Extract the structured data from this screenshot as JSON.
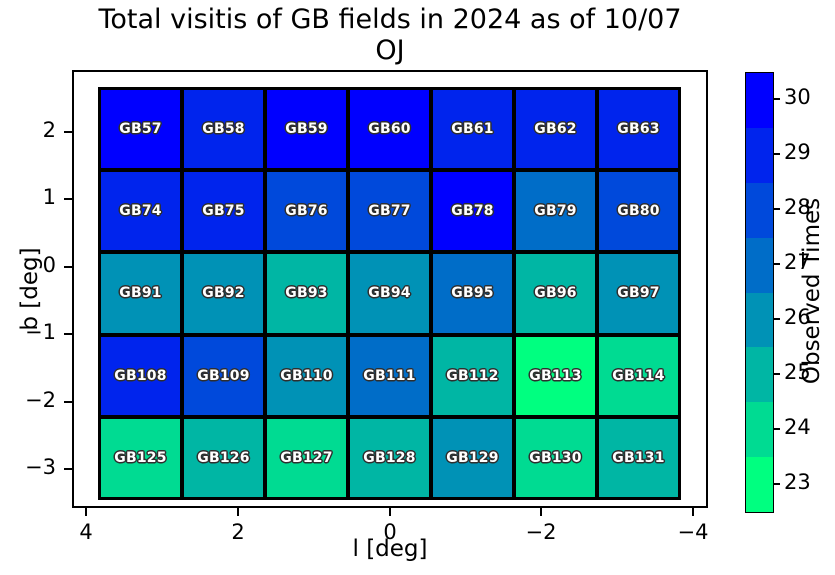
{
  "title": {
    "line1": "Total visitis of GB fields in 2024 as of 10/07",
    "line2": "OJ"
  },
  "axes": {
    "xlabel": "l [deg]",
    "ylabel": "b [deg]",
    "xtick_labels": [
      "4",
      "2",
      "0",
      "−2",
      "−4"
    ],
    "ytick_labels": [
      "2",
      "1",
      "0",
      "−1",
      "−2",
      "−3"
    ]
  },
  "colorbar": {
    "label": "Observed Times",
    "tick_labels": [
      "30",
      "29",
      "28",
      "27",
      "26",
      "25",
      "24",
      "23"
    ]
  },
  "chart_data": {
    "type": "heatmap",
    "title": "Total visitis of GB fields in 2024 as of 10/07 OJ",
    "xlabel": "l [deg]",
    "ylabel": "b [deg]",
    "colorbar_label": "Observed Times",
    "x_ticks": [
      4,
      2,
      0,
      -2,
      -4
    ],
    "y_ticks": [
      2,
      1,
      0,
      -1,
      -2,
      -3
    ],
    "x_axis_inverted": true,
    "value_range": [
      23,
      30
    ],
    "colormap": "winter_r_discrete_8",
    "value_colors": {
      "30": "#0000FF",
      "29": "#0024ED",
      "28": "#0049DB",
      "27": "#006DC8",
      "26": "#0092B6",
      "25": "#00B6A4",
      "24": "#00DB92",
      "23": "#00FF80"
    },
    "rows": [
      [
        {
          "label": "GB57",
          "value": 30
        },
        {
          "label": "GB58",
          "value": 29
        },
        {
          "label": "GB59",
          "value": 30
        },
        {
          "label": "GB60",
          "value": 30
        },
        {
          "label": "GB61",
          "value": 29
        },
        {
          "label": "GB62",
          "value": 29
        },
        {
          "label": "GB63",
          "value": 29
        }
      ],
      [
        {
          "label": "GB74",
          "value": 29
        },
        {
          "label": "GB75",
          "value": 29
        },
        {
          "label": "GB76",
          "value": 28
        },
        {
          "label": "GB77",
          "value": 28
        },
        {
          "label": "GB78",
          "value": 30
        },
        {
          "label": "GB79",
          "value": 27
        },
        {
          "label": "GB80",
          "value": 28
        }
      ],
      [
        {
          "label": "GB91",
          "value": 26
        },
        {
          "label": "GB92",
          "value": 26
        },
        {
          "label": "GB93",
          "value": 25
        },
        {
          "label": "GB94",
          "value": 26
        },
        {
          "label": "GB95",
          "value": 27
        },
        {
          "label": "GB96",
          "value": 25
        },
        {
          "label": "GB97",
          "value": 26
        }
      ],
      [
        {
          "label": "GB108",
          "value": 29
        },
        {
          "label": "GB109",
          "value": 28
        },
        {
          "label": "GB110",
          "value": 26
        },
        {
          "label": "GB111",
          "value": 27
        },
        {
          "label": "GB112",
          "value": 25
        },
        {
          "label": "GB113",
          "value": 23
        },
        {
          "label": "GB114",
          "value": 24
        }
      ],
      [
        {
          "label": "GB125",
          "value": 24
        },
        {
          "label": "GB126",
          "value": 25
        },
        {
          "label": "GB127",
          "value": 24
        },
        {
          "label": "GB128",
          "value": 25
        },
        {
          "label": "GB129",
          "value": 26
        },
        {
          "label": "GB130",
          "value": 24
        },
        {
          "label": "GB131",
          "value": 25
        }
      ]
    ]
  }
}
